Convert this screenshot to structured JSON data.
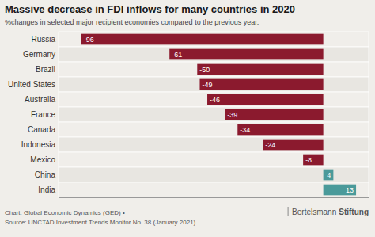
{
  "chart_data": {
    "type": "bar",
    "orientation": "horizontal",
    "title": "Massive decrease in FDI inflows for many countries in 2020",
    "subtitle": "%changes in selected major recipient economies compared to the previous year.",
    "categories": [
      "Russia",
      "Germany",
      "Brazil",
      "United States",
      "Australia",
      "France",
      "Canada",
      "Indonesia",
      "Mexico",
      "China",
      "India"
    ],
    "values": [
      -96,
      -61,
      -50,
      -49,
      -46,
      -39,
      -34,
      -24,
      -8,
      4,
      13
    ],
    "colors": [
      "#8b1a2e",
      "#8b1a2e",
      "#8b1a2e",
      "#8b1a2e",
      "#8b1a2e",
      "#8b1a2e",
      "#8b1a2e",
      "#8b1a2e",
      "#8b1a2e",
      "#4a9a9a",
      "#4a9a9a"
    ],
    "xlim": [
      -105,
      18
    ],
    "tick_labels": "y",
    "data_labels": true,
    "grid": false,
    "annotations": [
      "Chart: Global Economic Dynamics (GED) •",
      "Source: UNCTAD Investment Trends Monitor No. 38 (January 2021)",
      "Bertelsmann",
      "Stiftung"
    ]
  }
}
